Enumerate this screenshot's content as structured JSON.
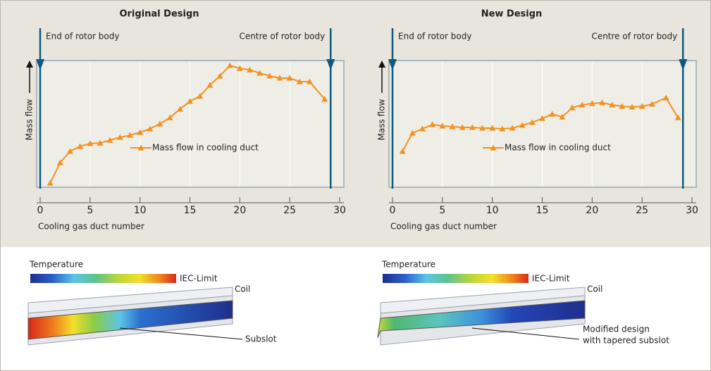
{
  "chart_data": [
    {
      "type": "line",
      "title": "Original Design",
      "x_label": "Cooling gas duct number",
      "y_label": "Mass flow",
      "annotations": [
        {
          "text": "End of rotor body",
          "x": 0
        },
        {
          "text": "Centre of rotor body",
          "x": 29.1
        }
      ],
      "xlim": [
        0,
        30
      ],
      "xticks": [
        0,
        5,
        10,
        15,
        20,
        25,
        30
      ],
      "ylim": [
        0,
        6
      ],
      "grid": true,
      "series": [
        {
          "name": "Mass flow in cooling duct",
          "color": "#f39222",
          "x": [
            1,
            2,
            3,
            4,
            5,
            6,
            7,
            8,
            9,
            10,
            11,
            12,
            13,
            14,
            15,
            16,
            17,
            18,
            19,
            20,
            21,
            22,
            23,
            24,
            25,
            26,
            27,
            28.5
          ],
          "values": [
            0.83,
            1.69,
            2.17,
            2.38,
            2.5,
            2.52,
            2.64,
            2.76,
            2.85,
            2.97,
            3.12,
            3.33,
            3.59,
            3.95,
            4.28,
            4.49,
            4.96,
            5.35,
            5.79,
            5.67,
            5.61,
            5.47,
            5.35,
            5.26,
            5.26,
            5.11,
            5.11,
            4.37
          ]
        }
      ]
    },
    {
      "type": "line",
      "title": "New Design",
      "x_label": "Cooling gas duct number",
      "y_label": "Mass flow",
      "annotations": [
        {
          "text": "End of rotor body",
          "x": 0
        },
        {
          "text": "Centre of rotor body",
          "x": 29.1
        }
      ],
      "xlim": [
        0,
        30
      ],
      "xticks": [
        0,
        5,
        10,
        15,
        20,
        25,
        30
      ],
      "ylim": [
        0,
        6
      ],
      "grid": true,
      "series": [
        {
          "name": "Mass flow in cooling duct",
          "color": "#f39222",
          "x": [
            1,
            2,
            3,
            4,
            5,
            6,
            7,
            8,
            9,
            10,
            11,
            12,
            13,
            14,
            15,
            16,
            17,
            18,
            19,
            20,
            21,
            22,
            23,
            24,
            25,
            26,
            27.4,
            28.6
          ],
          "values": [
            2.17,
            2.94,
            3.12,
            3.3,
            3.24,
            3.21,
            3.18,
            3.18,
            3.15,
            3.15,
            3.12,
            3.15,
            3.27,
            3.39,
            3.56,
            3.74,
            3.62,
            4.01,
            4.13,
            4.19,
            4.22,
            4.13,
            4.07,
            4.04,
            4.07,
            4.16,
            4.43,
            3.59
          ]
        }
      ]
    }
  ],
  "thermal": [
    {
      "scale_label": "Temperature",
      "limit_label": "IEC-Limit",
      "coil_label": "Coil",
      "slot_label": [
        "Subslot"
      ]
    },
    {
      "scale_label": "Temperature",
      "limit_label": "IEC-Limit",
      "coil_label": "Coil",
      "slot_label": [
        "Modified design",
        "with tapered subslot"
      ]
    }
  ]
}
